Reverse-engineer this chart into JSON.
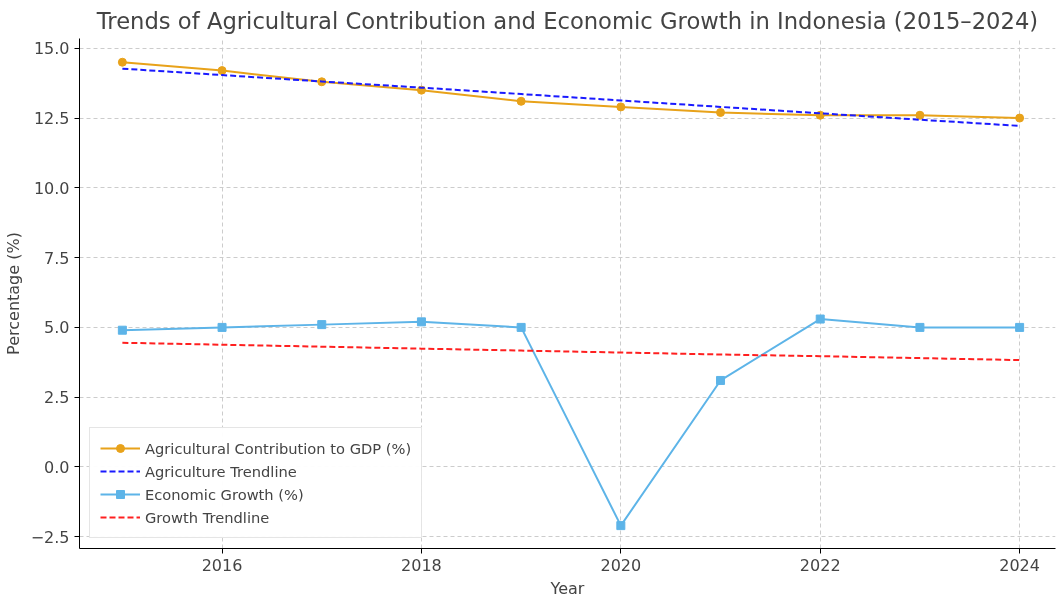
{
  "chart_data": {
    "type": "line",
    "title": "Trends of Agricultural Contribution and Economic Growth in Indonesia (2015–2024)",
    "xlabel": "Year",
    "ylabel": "Percentage (%)",
    "x": [
      2015,
      2016,
      2017,
      2018,
      2019,
      2020,
      2021,
      2022,
      2023,
      2024
    ],
    "series": [
      {
        "name": "Agricultural Contribution to GDP (%)",
        "color": "#e8a21a",
        "marker": "circle",
        "line_style": "solid",
        "values": [
          14.5,
          14.2,
          13.8,
          13.5,
          13.1,
          12.9,
          12.7,
          12.6,
          12.6,
          12.5
        ]
      },
      {
        "name": "Agriculture Trendline",
        "color": "#1a1aff",
        "marker": "none",
        "line_style": "dashed",
        "values": [
          14.27,
          14.04,
          13.81,
          13.59,
          13.36,
          13.13,
          12.9,
          12.67,
          12.44,
          12.22
        ]
      },
      {
        "name": "Economic Growth (%)",
        "color": "#5db4e8",
        "marker": "square",
        "line_style": "solid",
        "values": [
          4.9,
          5.0,
          5.1,
          5.2,
          5.0,
          -2.1,
          3.1,
          5.3,
          5.0,
          5.0
        ]
      },
      {
        "name": "Growth Trendline",
        "color": "#ff2020",
        "marker": "none",
        "line_style": "dashed",
        "values": [
          4.45,
          4.38,
          4.31,
          4.24,
          4.17,
          4.1,
          4.03,
          3.97,
          3.9,
          3.83
        ]
      }
    ],
    "xlim": [
      2014.57,
      2024.36
    ],
    "xticks": [
      2016,
      2018,
      2020,
      2022,
      2024
    ],
    "ylim": [
      -2.92,
      15.35
    ],
    "yticks": [
      {
        "value": -2.5,
        "label": "−2.5"
      },
      {
        "value": 0,
        "label": "0.0"
      },
      {
        "value": 2.5,
        "label": "2.5"
      },
      {
        "value": 5,
        "label": "5.0"
      },
      {
        "value": 7.5,
        "label": "7.5"
      },
      {
        "value": 10,
        "label": "10.0"
      },
      {
        "value": 12.5,
        "label": "12.5"
      },
      {
        "value": 15,
        "label": "15.0"
      }
    ],
    "grid": true,
    "legend": "bottom left"
  }
}
